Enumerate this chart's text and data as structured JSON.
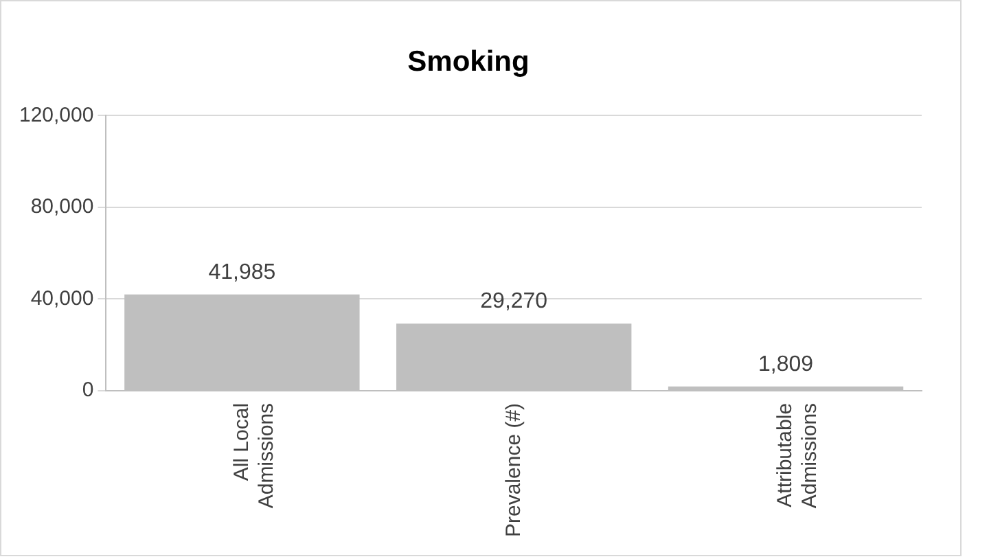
{
  "chart_data": {
    "type": "bar",
    "title": "Smoking",
    "categories": [
      "All Local Admissions",
      "Prevalence (#)",
      "Attributable Admissions"
    ],
    "values": [
      41985,
      29270,
      1809
    ],
    "value_labels": [
      "41,985",
      "29,270",
      "1,809"
    ],
    "color": "#bfbfbf",
    "ylim": [
      0,
      120000
    ],
    "yticks": [
      0,
      {
        "value": 40000,
        "label": "40,000"
      },
      {
        "value": 80000,
        "label": "80,000"
      },
      {
        "value": 120000,
        "label": "120,000"
      }
    ],
    "grid": "y",
    "legend": false
  }
}
